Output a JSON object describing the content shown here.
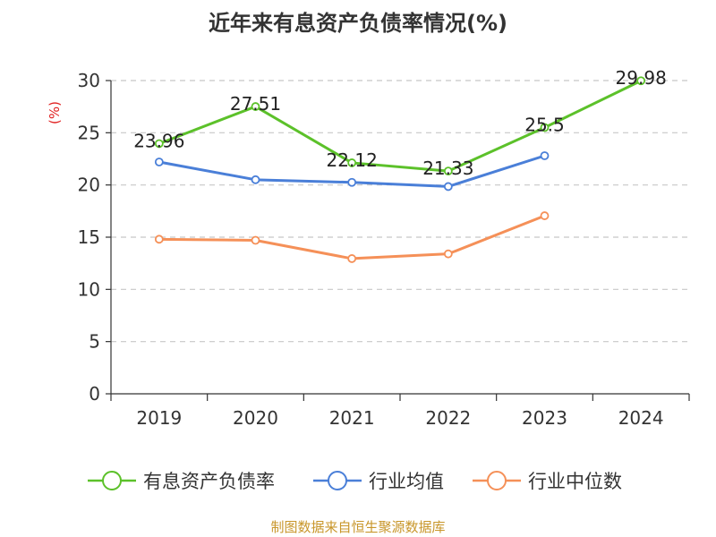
{
  "chart_data": {
    "type": "line",
    "title": "近年来有息资产负债率情况(%)",
    "ylabel": "(%)",
    "xlabel": "",
    "categories": [
      "2019",
      "2020",
      "2021",
      "2022",
      "2023",
      "2024"
    ],
    "ylim": [
      0,
      30
    ],
    "yticks": [
      0,
      5,
      10,
      15,
      20,
      25,
      30
    ],
    "grid": true,
    "legend_position": "bottom",
    "series": [
      {
        "name": "有息资产负债率",
        "color": "#5cc12a",
        "values": [
          23.96,
          27.51,
          22.12,
          21.33,
          25.5,
          29.98
        ],
        "labels": [
          "23.96",
          "27.51",
          "22.12",
          "21.33",
          "25.5",
          "29.98"
        ]
      },
      {
        "name": "行业均值",
        "color": "#4a7fd8",
        "values": [
          22.2,
          20.5,
          20.25,
          19.85,
          22.8,
          null
        ]
      },
      {
        "name": "行业中位数",
        "color": "#f59058",
        "values": [
          14.8,
          14.7,
          12.95,
          13.4,
          17.05,
          null
        ]
      }
    ]
  },
  "footer": {
    "source": "制图数据来自恒生聚源数据库"
  }
}
